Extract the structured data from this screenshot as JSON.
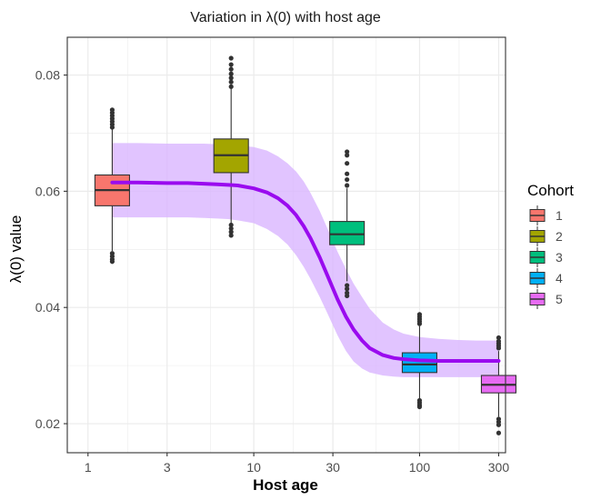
{
  "chart_data": {
    "type": "boxplot",
    "title": "Variation in  λ(0)  with host age",
    "xlabel": "Host age",
    "ylabel": "λ(0) value",
    "x_scale": "log10",
    "xlim": [
      0.75,
      330
    ],
    "ylim": [
      0.015,
      0.0865
    ],
    "x_ticks": [
      1,
      3,
      10,
      30,
      100,
      300
    ],
    "x_tick_labels": [
      "1",
      "3",
      "10",
      "30",
      "100",
      "300"
    ],
    "y_ticks": [
      0.02,
      0.04,
      0.06,
      0.08
    ],
    "y_tick_labels": [
      "0.02",
      "0.04",
      "0.06",
      "0.08"
    ],
    "grid": true,
    "legend": {
      "title": "Cohort",
      "position": "right",
      "entries": [
        "1",
        "2",
        "3",
        "4",
        "5"
      ]
    },
    "colors": {
      "cohort": [
        "#F8766D",
        "#A3A500",
        "#00BF7D",
        "#00B0F6",
        "#E76BF3"
      ],
      "fit_line": "#9A0BEF",
      "ribbon": "#D9B3FF",
      "panel_border": "#333333",
      "grid": "#EBEBEB"
    },
    "boxes": [
      {
        "cohort": "1",
        "x": 1.4,
        "q1": 0.0575,
        "median": 0.0602,
        "q3": 0.0628,
        "whisker_low": 0.0497,
        "whisker_high": 0.0707,
        "outliers": [
          0.071,
          0.0715,
          0.072,
          0.0725,
          0.073,
          0.0735,
          0.074,
          0.0493,
          0.0488,
          0.0483,
          0.0479
        ]
      },
      {
        "cohort": "2",
        "x": 7.3,
        "q1": 0.0632,
        "median": 0.0662,
        "q3": 0.069,
        "whisker_low": 0.0545,
        "whisker_high": 0.0777,
        "outliers": [
          0.078,
          0.0788,
          0.0795,
          0.0802,
          0.081,
          0.0818,
          0.0829,
          0.0542,
          0.0536,
          0.053,
          0.0524
        ]
      },
      {
        "cohort": "3",
        "x": 36.5,
        "q1": 0.0508,
        "median": 0.0526,
        "q3": 0.0548,
        "whisker_low": 0.0445,
        "whisker_high": 0.0605,
        "outliers": [
          0.061,
          0.062,
          0.063,
          0.0648,
          0.0662,
          0.0668,
          0.0438,
          0.0432,
          0.0425,
          0.042
        ]
      },
      {
        "cohort": "4",
        "x": 100,
        "q1": 0.0288,
        "median": 0.0302,
        "q3": 0.0322,
        "whisker_low": 0.0242,
        "whisker_high": 0.0368,
        "outliers": [
          0.0372,
          0.0376,
          0.038,
          0.0384,
          0.0388,
          0.024,
          0.0236,
          0.0232,
          0.0229
        ]
      },
      {
        "cohort": "5",
        "x": 300,
        "q1": 0.0253,
        "median": 0.0267,
        "q3": 0.0283,
        "whisker_low": 0.0212,
        "whisker_high": 0.0325,
        "outliers": [
          0.033,
          0.0334,
          0.0338,
          0.0342,
          0.0348,
          0.0208,
          0.0203,
          0.0198,
          0.0184
        ]
      }
    ],
    "fit": {
      "x": [
        1.4,
        2,
        3,
        4,
        5,
        6,
        7,
        8,
        10,
        12,
        14,
        16,
        18,
        20,
        22,
        25,
        28,
        32,
        36,
        40,
        45,
        50,
        60,
        70,
        80,
        100,
        130,
        170,
        220,
        300
      ],
      "y": [
        0.0615,
        0.0615,
        0.0614,
        0.0614,
        0.0613,
        0.0612,
        0.0611,
        0.061,
        0.0605,
        0.0598,
        0.0588,
        0.0575,
        0.0559,
        0.054,
        0.0519,
        0.0486,
        0.0453,
        0.0414,
        0.0384,
        0.0362,
        0.0343,
        0.033,
        0.0318,
        0.0313,
        0.0311,
        0.0309,
        0.0308,
        0.0308,
        0.0308,
        0.0308
      ],
      "ymin": [
        0.0555,
        0.0555,
        0.0555,
        0.0555,
        0.0554,
        0.0553,
        0.0552,
        0.055,
        0.0545,
        0.0535,
        0.0523,
        0.0508,
        0.049,
        0.047,
        0.0449,
        0.0418,
        0.0388,
        0.0352,
        0.0325,
        0.0307,
        0.0295,
        0.0288,
        0.0283,
        0.0281,
        0.028,
        0.028,
        0.028,
        0.028,
        0.028,
        0.028
      ],
      "ymax": [
        0.0683,
        0.0683,
        0.0682,
        0.0682,
        0.0682,
        0.0681,
        0.068,
        0.0679,
        0.0676,
        0.067,
        0.066,
        0.0648,
        0.0634,
        0.0617,
        0.0597,
        0.0566,
        0.0534,
        0.0496,
        0.0466,
        0.0441,
        0.0418,
        0.0398,
        0.0374,
        0.0362,
        0.0355,
        0.0349,
        0.0346,
        0.0344,
        0.0343,
        0.0343
      ]
    }
  }
}
